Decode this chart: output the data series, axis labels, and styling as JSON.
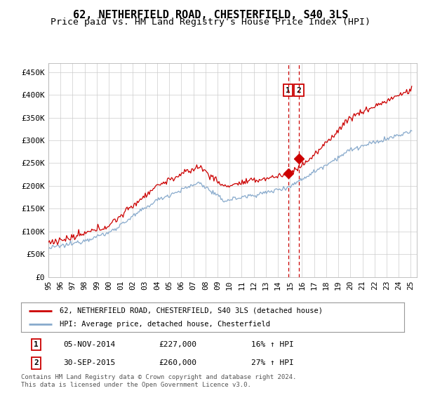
{
  "title": "62, NETHERFIELD ROAD, CHESTERFIELD, S40 3LS",
  "subtitle": "Price paid vs. HM Land Registry's House Price Index (HPI)",
  "ylabel_ticks": [
    "£0",
    "£50K",
    "£100K",
    "£150K",
    "£200K",
    "£250K",
    "£300K",
    "£350K",
    "£400K",
    "£450K"
  ],
  "ytick_vals": [
    0,
    50000,
    100000,
    150000,
    200000,
    250000,
    300000,
    350000,
    400000,
    450000
  ],
  "ylim": [
    0,
    470000
  ],
  "xlim_start": 1995.0,
  "xlim_end": 2025.5,
  "red_line_color": "#cc0000",
  "blue_line_color": "#88aacc",
  "marker1_date": 2014.85,
  "marker1_value": 227000,
  "marker2_date": 2015.75,
  "marker2_value": 260000,
  "vline1_x": 2014.85,
  "vline2_x": 2015.75,
  "legend1_label": "62, NETHERFIELD ROAD, CHESTERFIELD, S40 3LS (detached house)",
  "legend2_label": "HPI: Average price, detached house, Chesterfield",
  "table_row1": [
    "1",
    "05-NOV-2014",
    "£227,000",
    "16% ↑ HPI"
  ],
  "table_row2": [
    "2",
    "30-SEP-2015",
    "£260,000",
    "27% ↑ HPI"
  ],
  "footer": "Contains HM Land Registry data © Crown copyright and database right 2024.\nThis data is licensed under the Open Government Licence v3.0.",
  "grid_color": "#cccccc",
  "bg_color": "#ffffff",
  "title_fontsize": 11,
  "subtitle_fontsize": 9.5,
  "tick_fontsize": 8
}
